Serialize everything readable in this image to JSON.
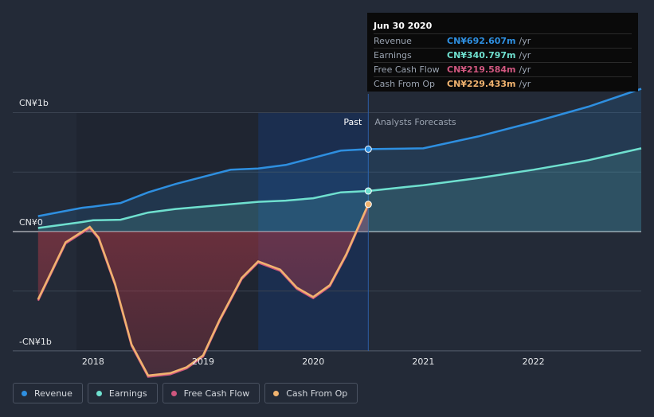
{
  "colors": {
    "revenue": "#2e8fe0",
    "earnings": "#6fe0cf",
    "fcf": "#d0577f",
    "cfo": "#f1b36f"
  },
  "tooltip": {
    "date": "Jun 30 2020",
    "rows": [
      {
        "label": "Revenue",
        "value": "CN¥692.607m",
        "unit": "/yr"
      },
      {
        "label": "Earnings",
        "value": "CN¥340.797m",
        "unit": "/yr"
      },
      {
        "label": "Free Cash Flow",
        "value": "CN¥219.584m",
        "unit": "/yr"
      },
      {
        "label": "Cash From Op",
        "value": "CN¥229.433m",
        "unit": "/yr"
      }
    ]
  },
  "legend": [
    {
      "label": "Revenue"
    },
    {
      "label": "Earnings"
    },
    {
      "label": "Free Cash Flow"
    },
    {
      "label": "Cash From Op"
    }
  ],
  "chart_data": {
    "type": "line",
    "title": "",
    "xlabel": "",
    "ylabel": "",
    "y_tick_labels": [
      "CN¥1b",
      "CN¥0",
      "-CN¥1b"
    ],
    "y_ticks": [
      1000,
      0,
      -1000
    ],
    "x_tick_labels": [
      "2018",
      "2019",
      "2020",
      "2021",
      "2022"
    ],
    "x_ticks": [
      2018,
      2019,
      2020,
      2021,
      2022
    ],
    "xlim": [
      2017.27,
      2022.98
    ],
    "ylim": [
      -1000,
      1000
    ],
    "past_label": "Past",
    "forecast_label": "Analysts Forecasts",
    "divider_x": 2020.5,
    "shade_start_x": 2019.5,
    "series": [
      {
        "name": "Revenue",
        "points": [
          [
            2017.5,
            130
          ],
          [
            2017.9,
            200
          ],
          [
            2018.0,
            210
          ],
          [
            2018.25,
            240
          ],
          [
            2018.5,
            330
          ],
          [
            2018.75,
            400
          ],
          [
            2019.0,
            460
          ],
          [
            2019.25,
            520
          ],
          [
            2019.5,
            530
          ],
          [
            2019.75,
            560
          ],
          [
            2020.0,
            620
          ],
          [
            2020.25,
            680
          ],
          [
            2020.5,
            693
          ]
        ]
      },
      {
        "name": "Revenue Forecast",
        "points": [
          [
            2020.5,
            693
          ],
          [
            2021.0,
            700
          ],
          [
            2021.5,
            800
          ],
          [
            2022.0,
            920
          ],
          [
            2022.5,
            1050
          ],
          [
            2022.98,
            1200
          ]
        ]
      },
      {
        "name": "Earnings",
        "points": [
          [
            2017.5,
            30
          ],
          [
            2017.9,
            80
          ],
          [
            2018.0,
            95
          ],
          [
            2018.25,
            100
          ],
          [
            2018.5,
            160
          ],
          [
            2018.75,
            190
          ],
          [
            2019.0,
            210
          ],
          [
            2019.25,
            230
          ],
          [
            2019.5,
            250
          ],
          [
            2019.75,
            260
          ],
          [
            2020.0,
            280
          ],
          [
            2020.25,
            330
          ],
          [
            2020.5,
            341
          ]
        ]
      },
      {
        "name": "Earnings Forecast",
        "points": [
          [
            2020.5,
            341
          ],
          [
            2021.0,
            390
          ],
          [
            2021.5,
            450
          ],
          [
            2022.0,
            520
          ],
          [
            2022.5,
            600
          ],
          [
            2022.98,
            700
          ]
        ]
      },
      {
        "name": "Free Cash Flow",
        "points": [
          [
            2017.5,
            -580
          ],
          [
            2017.75,
            -100
          ],
          [
            2017.97,
            30
          ],
          [
            2018.05,
            -60
          ],
          [
            2018.2,
            -450
          ],
          [
            2018.35,
            -960
          ],
          [
            2018.5,
            -1220
          ],
          [
            2018.7,
            -1200
          ],
          [
            2018.85,
            -1150
          ],
          [
            2019.0,
            -1050
          ],
          [
            2019.15,
            -750
          ],
          [
            2019.35,
            -400
          ],
          [
            2019.5,
            -260
          ],
          [
            2019.7,
            -330
          ],
          [
            2019.85,
            -480
          ],
          [
            2020.0,
            -560
          ],
          [
            2020.15,
            -460
          ],
          [
            2020.3,
            -200
          ],
          [
            2020.5,
            220
          ]
        ]
      },
      {
        "name": "Cash From Op",
        "points": [
          [
            2017.5,
            -570
          ],
          [
            2017.75,
            -90
          ],
          [
            2017.97,
            40
          ],
          [
            2018.05,
            -50
          ],
          [
            2018.2,
            -440
          ],
          [
            2018.35,
            -950
          ],
          [
            2018.5,
            -1210
          ],
          [
            2018.7,
            -1190
          ],
          [
            2018.85,
            -1140
          ],
          [
            2019.0,
            -1040
          ],
          [
            2019.15,
            -740
          ],
          [
            2019.35,
            -390
          ],
          [
            2019.5,
            -250
          ],
          [
            2019.7,
            -320
          ],
          [
            2019.85,
            -470
          ],
          [
            2020.0,
            -550
          ],
          [
            2020.15,
            -450
          ],
          [
            2020.3,
            -190
          ],
          [
            2020.5,
            229
          ]
        ]
      }
    ]
  }
}
